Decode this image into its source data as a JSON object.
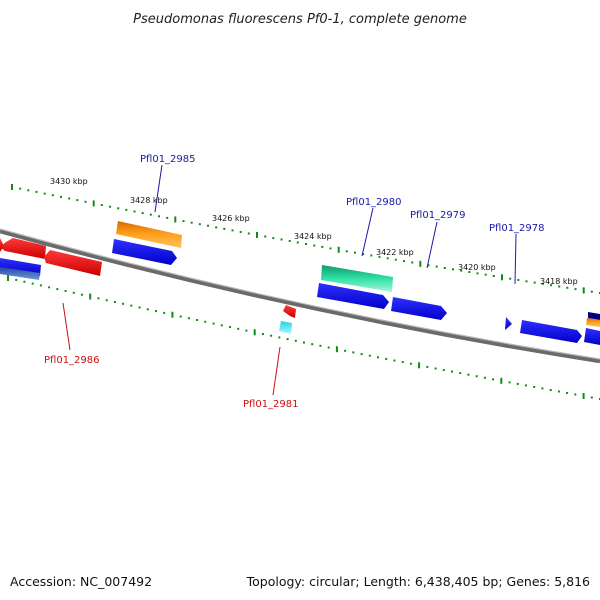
{
  "title": "Pseudomonas fluorescens Pf0-1, complete genome",
  "footer": {
    "accession": "Accession: NC_007492",
    "summary": "Topology: circular; Length: 6,438,405 bp; Genes: 5,816"
  },
  "scale_labels": [
    "3430 kbp",
    "3428 kbp",
    "3426 kbp",
    "3424 kbp",
    "3422 kbp",
    "3420 kbp",
    "3418 kbp"
  ],
  "gene_labels": {
    "top": [
      "Pfl01_2985",
      "Pfl01_2980",
      "Pfl01_2979",
      "Pfl01_2978"
    ],
    "bottom": [
      "Pfl01_2986",
      "Pfl01_2981"
    ]
  },
  "colors": {
    "forward_label": "#1a1aa6",
    "reverse_label": "#cc1111",
    "backbone": "#7f7f7f",
    "ticks": "#138a13",
    "blue": "#1010e6",
    "red": "#ee1111",
    "orange": "#ff9a1a",
    "green": "#22d69a",
    "cyan": "#22e0f0",
    "steel": "#4a7abf"
  }
}
